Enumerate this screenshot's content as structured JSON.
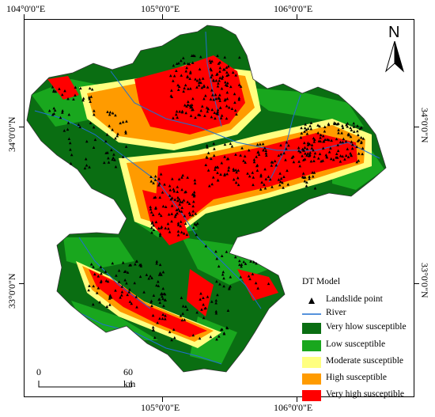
{
  "graticule": {
    "top": [
      "104°0'0\"E",
      "105°0'0\"E",
      "106°0'0\"E"
    ],
    "bottom": [
      "105°0'0\"E",
      "106°0'0\"E"
    ],
    "left": [
      "34°0'0\"N",
      "33°0'0\"N"
    ],
    "right": [
      "34°0'0\"N",
      "33°0'0\"N"
    ]
  },
  "north_arrow": {
    "label": "N",
    "icon": "north-arrow-icon"
  },
  "scale_bar": {
    "start": "0",
    "end": "60 km"
  },
  "legend": {
    "title": "DT Model",
    "items": [
      {
        "label": "Landslide point",
        "symbol": "triangle",
        "color": "#000000"
      },
      {
        "label": "River",
        "symbol": "line",
        "color": "#1f6fd1"
      },
      {
        "label": "Very hlow susceptible",
        "symbol": "box",
        "color": "#0a6e12"
      },
      {
        "label": "Low susceptible",
        "symbol": "box",
        "color": "#19a71e"
      },
      {
        "label": "Moderate susceptible",
        "symbol": "box",
        "color": "#ffff80"
      },
      {
        "label": "High susceptible",
        "symbol": "box",
        "color": "#ff9b00"
      },
      {
        "label": "Very high susceptible",
        "symbol": "box",
        "color": "#ff0000"
      }
    ]
  }
}
